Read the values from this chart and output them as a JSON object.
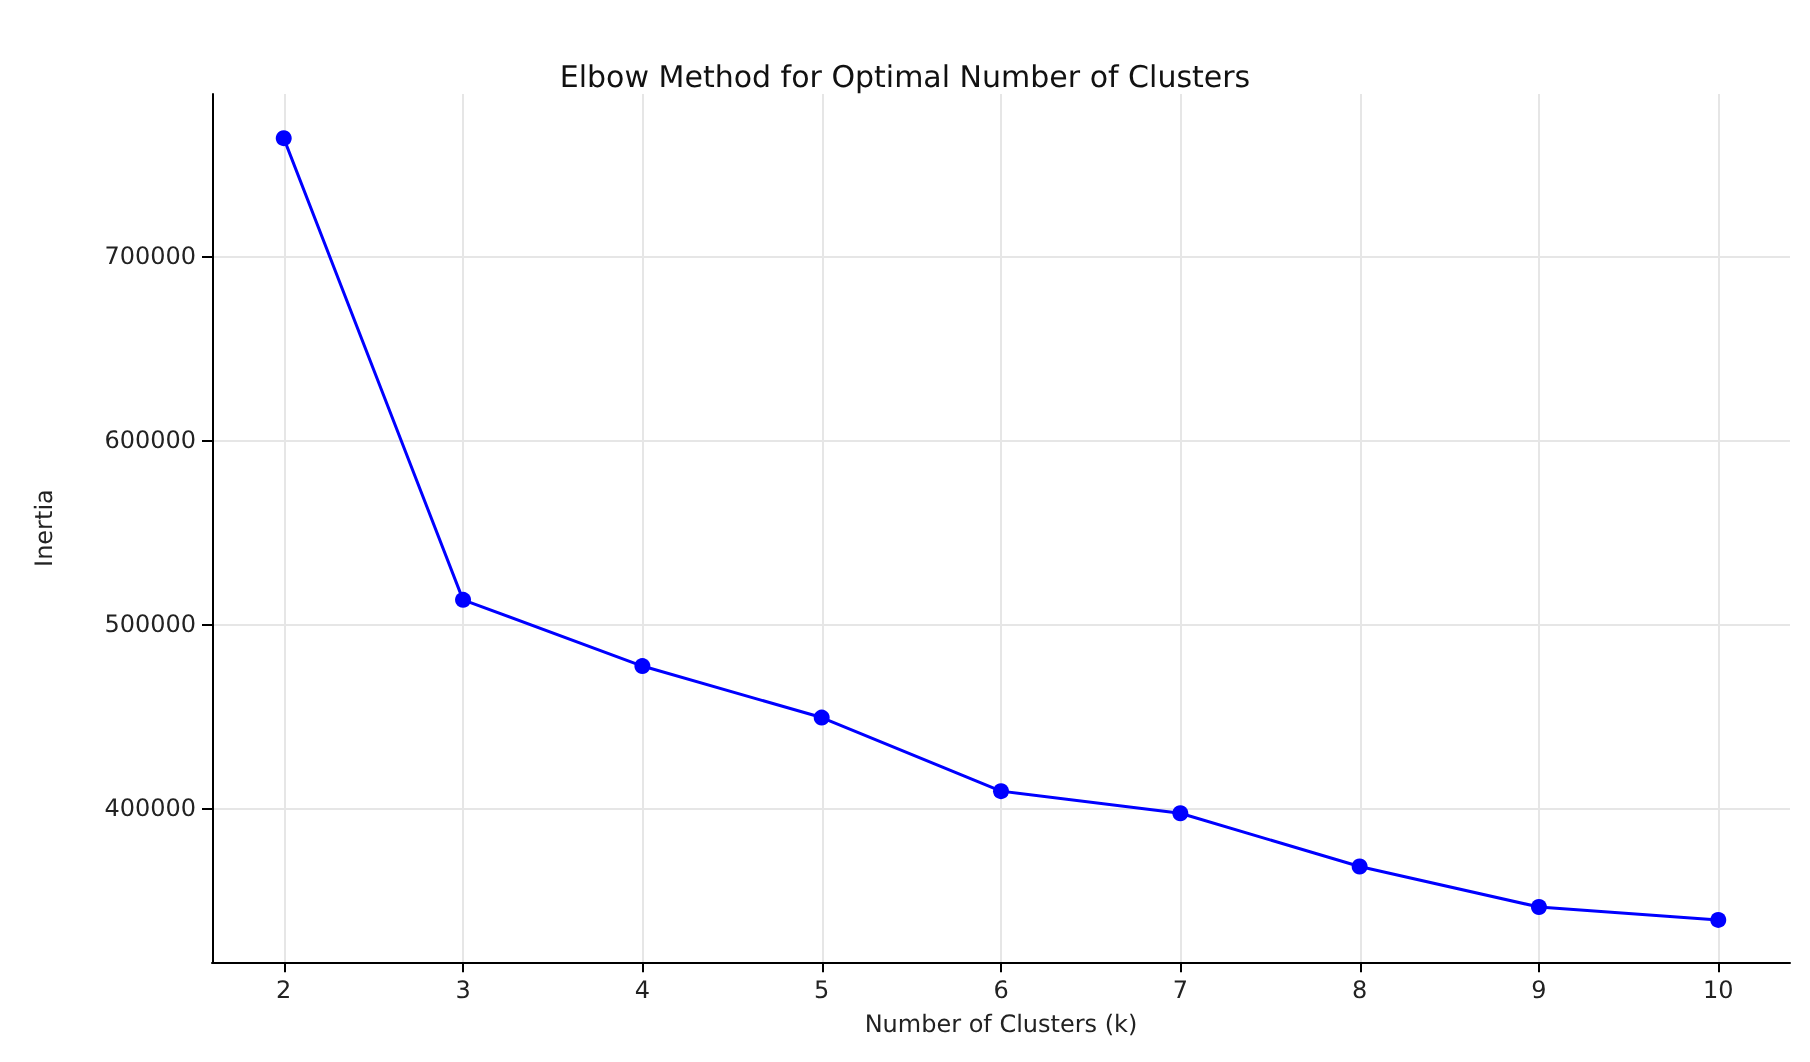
{
  "chart_data": {
    "type": "line",
    "title": "Elbow Method for Optimal Number of Clusters",
    "xlabel": "Number of Clusters (k)",
    "ylabel": "Inertia",
    "x": [
      2,
      3,
      4,
      5,
      6,
      7,
      8,
      9,
      10
    ],
    "series": [
      {
        "color": "#0000ff",
        "values": [
          764000,
          513000,
          477000,
          449000,
          409000,
          397000,
          368000,
          346000,
          339000
        ]
      }
    ],
    "xlim": [
      1.6,
      10.4
    ],
    "xticks": [
      2,
      3,
      4,
      5,
      6,
      7,
      8,
      9,
      10
    ],
    "ylim": [
      316000,
      788000
    ],
    "yticks": [
      400000,
      500000,
      600000,
      700000
    ],
    "grid": true,
    "marker": "circle",
    "line_style": "solid"
  }
}
